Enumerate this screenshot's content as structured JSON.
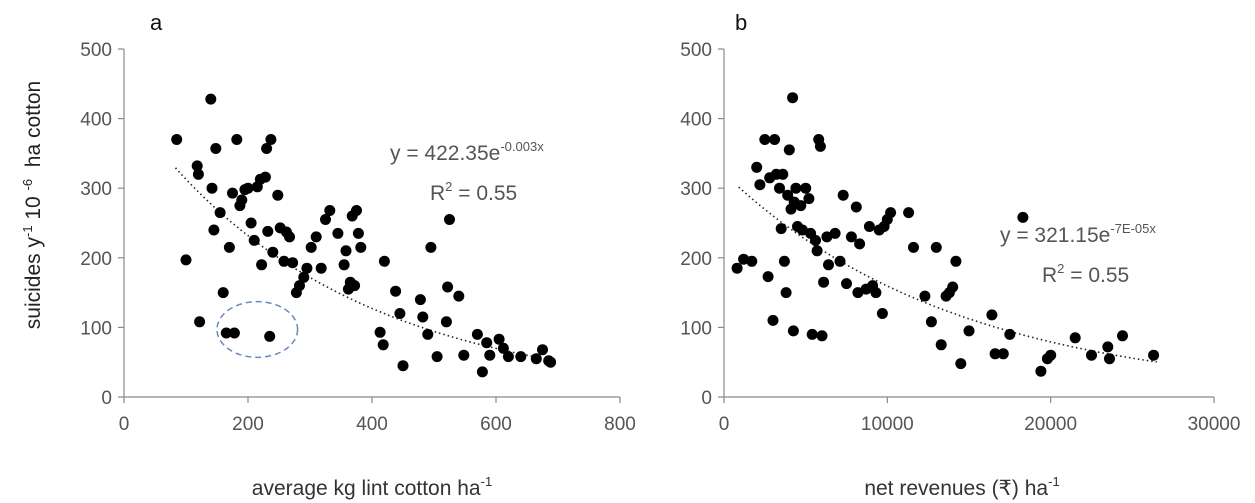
{
  "figure": {
    "ylabel": {
      "base": "suicides y",
      "exp1": "-1",
      "mid": "  10 ",
      "exp2": "-6",
      "end": "  ha cotton"
    }
  },
  "chart_data": [
    {
      "type": "scatter",
      "panel": "a",
      "xlabel": {
        "base": "average kg lint cotton ha",
        "exp": "-1"
      },
      "xlim": [
        0,
        800
      ],
      "ylim": [
        0,
        500
      ],
      "xticks": [
        "0",
        "200",
        "400",
        "600",
        "800"
      ],
      "yticks": [
        "0",
        "100",
        "200",
        "300",
        "400",
        "500"
      ],
      "trendline": {
        "type": "exponential",
        "a": 422.35,
        "b": -0.003,
        "x_range": [
          83,
          688
        ],
        "style": "dotted"
      },
      "equation": {
        "base": "y = 422.35e",
        "exp": "-0.003x",
        "r2_base": "R",
        "r2_exp": "2",
        "r2_rest": " = 0.55"
      },
      "highlight": {
        "shape": "dashed-ellipse",
        "color": "#6688bb",
        "cx": 215,
        "cy": 97,
        "rx": 65,
        "ry": 40
      },
      "points": [
        {
          "x": 85,
          "y": 370
        },
        {
          "x": 100,
          "y": 197
        },
        {
          "x": 118,
          "y": 332
        },
        {
          "x": 120,
          "y": 320
        },
        {
          "x": 122,
          "y": 108
        },
        {
          "x": 140,
          "y": 428
        },
        {
          "x": 142,
          "y": 300
        },
        {
          "x": 145,
          "y": 240
        },
        {
          "x": 148,
          "y": 357
        },
        {
          "x": 155,
          "y": 265
        },
        {
          "x": 160,
          "y": 150
        },
        {
          "x": 165,
          "y": 92
        },
        {
          "x": 170,
          "y": 215
        },
        {
          "x": 175,
          "y": 293
        },
        {
          "x": 178,
          "y": 92
        },
        {
          "x": 182,
          "y": 370
        },
        {
          "x": 187,
          "y": 275
        },
        {
          "x": 190,
          "y": 283
        },
        {
          "x": 195,
          "y": 298
        },
        {
          "x": 200,
          "y": 300
        },
        {
          "x": 205,
          "y": 250
        },
        {
          "x": 210,
          "y": 225
        },
        {
          "x": 215,
          "y": 302
        },
        {
          "x": 220,
          "y": 313
        },
        {
          "x": 222,
          "y": 190
        },
        {
          "x": 228,
          "y": 316
        },
        {
          "x": 230,
          "y": 357
        },
        {
          "x": 232,
          "y": 238
        },
        {
          "x": 235,
          "y": 87
        },
        {
          "x": 237,
          "y": 370
        },
        {
          "x": 240,
          "y": 208
        },
        {
          "x": 248,
          "y": 290
        },
        {
          "x": 252,
          "y": 243
        },
        {
          "x": 258,
          "y": 195
        },
        {
          "x": 262,
          "y": 237
        },
        {
          "x": 267,
          "y": 230
        },
        {
          "x": 272,
          "y": 193
        },
        {
          "x": 278,
          "y": 150
        },
        {
          "x": 283,
          "y": 160
        },
        {
          "x": 290,
          "y": 172
        },
        {
          "x": 295,
          "y": 185
        },
        {
          "x": 302,
          "y": 215
        },
        {
          "x": 310,
          "y": 230
        },
        {
          "x": 318,
          "y": 185
        },
        {
          "x": 325,
          "y": 255
        },
        {
          "x": 332,
          "y": 268
        },
        {
          "x": 345,
          "y": 235
        },
        {
          "x": 355,
          "y": 190
        },
        {
          "x": 358,
          "y": 210
        },
        {
          "x": 362,
          "y": 155
        },
        {
          "x": 365,
          "y": 165
        },
        {
          "x": 368,
          "y": 260
        },
        {
          "x": 372,
          "y": 160
        },
        {
          "x": 375,
          "y": 268
        },
        {
          "x": 378,
          "y": 235
        },
        {
          "x": 382,
          "y": 215
        },
        {
          "x": 413,
          "y": 93
        },
        {
          "x": 418,
          "y": 75
        },
        {
          "x": 420,
          "y": 195
        },
        {
          "x": 438,
          "y": 152
        },
        {
          "x": 445,
          "y": 120
        },
        {
          "x": 450,
          "y": 45
        },
        {
          "x": 478,
          "y": 140
        },
        {
          "x": 482,
          "y": 115
        },
        {
          "x": 490,
          "y": 90
        },
        {
          "x": 495,
          "y": 215
        },
        {
          "x": 505,
          "y": 58
        },
        {
          "x": 520,
          "y": 108
        },
        {
          "x": 522,
          "y": 158
        },
        {
          "x": 525,
          "y": 255
        },
        {
          "x": 540,
          "y": 145
        },
        {
          "x": 548,
          "y": 60
        },
        {
          "x": 570,
          "y": 90
        },
        {
          "x": 578,
          "y": 36
        },
        {
          "x": 585,
          "y": 78
        },
        {
          "x": 590,
          "y": 60
        },
        {
          "x": 605,
          "y": 83
        },
        {
          "x": 612,
          "y": 70
        },
        {
          "x": 620,
          "y": 58
        },
        {
          "x": 640,
          "y": 58
        },
        {
          "x": 665,
          "y": 55
        },
        {
          "x": 675,
          "y": 68
        },
        {
          "x": 685,
          "y": 52
        },
        {
          "x": 688,
          "y": 50
        }
      ]
    },
    {
      "type": "scatter",
      "panel": "b",
      "xlabel": {
        "base": "net revenues (₹) ha",
        "exp": "-1"
      },
      "xlim": [
        0,
        30000
      ],
      "ylim": [
        0,
        500
      ],
      "xticks": [
        "0",
        "10000",
        "20000",
        "30000"
      ],
      "yticks": [
        "0",
        "100",
        "200",
        "300",
        "400",
        "500"
      ],
      "trendline": {
        "type": "exponential",
        "a": 321.15,
        "b": -7e-05,
        "x_range": [
          900,
          26500
        ],
        "style": "dotted"
      },
      "equation": {
        "base": "y = 321.15e",
        "exp": "-7E-05x",
        "r2_base": "R",
        "r2_exp": "2",
        "r2_rest": " = 0.55"
      },
      "points": [
        {
          "x": 800,
          "y": 185
        },
        {
          "x": 1200,
          "y": 198
        },
        {
          "x": 1700,
          "y": 195
        },
        {
          "x": 2000,
          "y": 330
        },
        {
          "x": 2200,
          "y": 305
        },
        {
          "x": 2500,
          "y": 370
        },
        {
          "x": 2700,
          "y": 173
        },
        {
          "x": 2800,
          "y": 315
        },
        {
          "x": 3000,
          "y": 110
        },
        {
          "x": 3100,
          "y": 370
        },
        {
          "x": 3200,
          "y": 320
        },
        {
          "x": 3400,
          "y": 300
        },
        {
          "x": 3500,
          "y": 242
        },
        {
          "x": 3600,
          "y": 320
        },
        {
          "x": 3700,
          "y": 195
        },
        {
          "x": 3800,
          "y": 150
        },
        {
          "x": 3900,
          "y": 290
        },
        {
          "x": 4000,
          "y": 355
        },
        {
          "x": 4100,
          "y": 270
        },
        {
          "x": 4200,
          "y": 430
        },
        {
          "x": 4250,
          "y": 95
        },
        {
          "x": 4300,
          "y": 280
        },
        {
          "x": 4400,
          "y": 300
        },
        {
          "x": 4500,
          "y": 245
        },
        {
          "x": 4700,
          "y": 275
        },
        {
          "x": 4800,
          "y": 240
        },
        {
          "x": 5000,
          "y": 300
        },
        {
          "x": 5200,
          "y": 285
        },
        {
          "x": 5300,
          "y": 235
        },
        {
          "x": 5400,
          "y": 90
        },
        {
          "x": 5600,
          "y": 225
        },
        {
          "x": 5700,
          "y": 210
        },
        {
          "x": 5800,
          "y": 370
        },
        {
          "x": 5900,
          "y": 360
        },
        {
          "x": 6000,
          "y": 88
        },
        {
          "x": 6100,
          "y": 165
        },
        {
          "x": 6300,
          "y": 230
        },
        {
          "x": 6400,
          "y": 190
        },
        {
          "x": 6800,
          "y": 235
        },
        {
          "x": 7100,
          "y": 195
        },
        {
          "x": 7300,
          "y": 290
        },
        {
          "x": 7500,
          "y": 163
        },
        {
          "x": 7800,
          "y": 230
        },
        {
          "x": 8100,
          "y": 273
        },
        {
          "x": 8200,
          "y": 150
        },
        {
          "x": 8300,
          "y": 220
        },
        {
          "x": 8700,
          "y": 155
        },
        {
          "x": 8900,
          "y": 245
        },
        {
          "x": 9100,
          "y": 160
        },
        {
          "x": 9300,
          "y": 150
        },
        {
          "x": 9500,
          "y": 240
        },
        {
          "x": 9700,
          "y": 120
        },
        {
          "x": 9800,
          "y": 245
        },
        {
          "x": 10000,
          "y": 255
        },
        {
          "x": 10200,
          "y": 265
        },
        {
          "x": 11300,
          "y": 265
        },
        {
          "x": 11600,
          "y": 215
        },
        {
          "x": 12300,
          "y": 145
        },
        {
          "x": 12700,
          "y": 108
        },
        {
          "x": 13000,
          "y": 215
        },
        {
          "x": 13300,
          "y": 75
        },
        {
          "x": 13600,
          "y": 145
        },
        {
          "x": 13800,
          "y": 150
        },
        {
          "x": 14000,
          "y": 158
        },
        {
          "x": 14200,
          "y": 195
        },
        {
          "x": 14500,
          "y": 48
        },
        {
          "x": 15000,
          "y": 95
        },
        {
          "x": 16400,
          "y": 118
        },
        {
          "x": 16600,
          "y": 62
        },
        {
          "x": 17100,
          "y": 62
        },
        {
          "x": 17500,
          "y": 90
        },
        {
          "x": 18300,
          "y": 258
        },
        {
          "x": 19400,
          "y": 37
        },
        {
          "x": 19800,
          "y": 55
        },
        {
          "x": 20000,
          "y": 60
        },
        {
          "x": 21500,
          "y": 85
        },
        {
          "x": 22500,
          "y": 60
        },
        {
          "x": 23500,
          "y": 72
        },
        {
          "x": 23600,
          "y": 55
        },
        {
          "x": 24400,
          "y": 88
        },
        {
          "x": 26300,
          "y": 60
        }
      ]
    }
  ]
}
